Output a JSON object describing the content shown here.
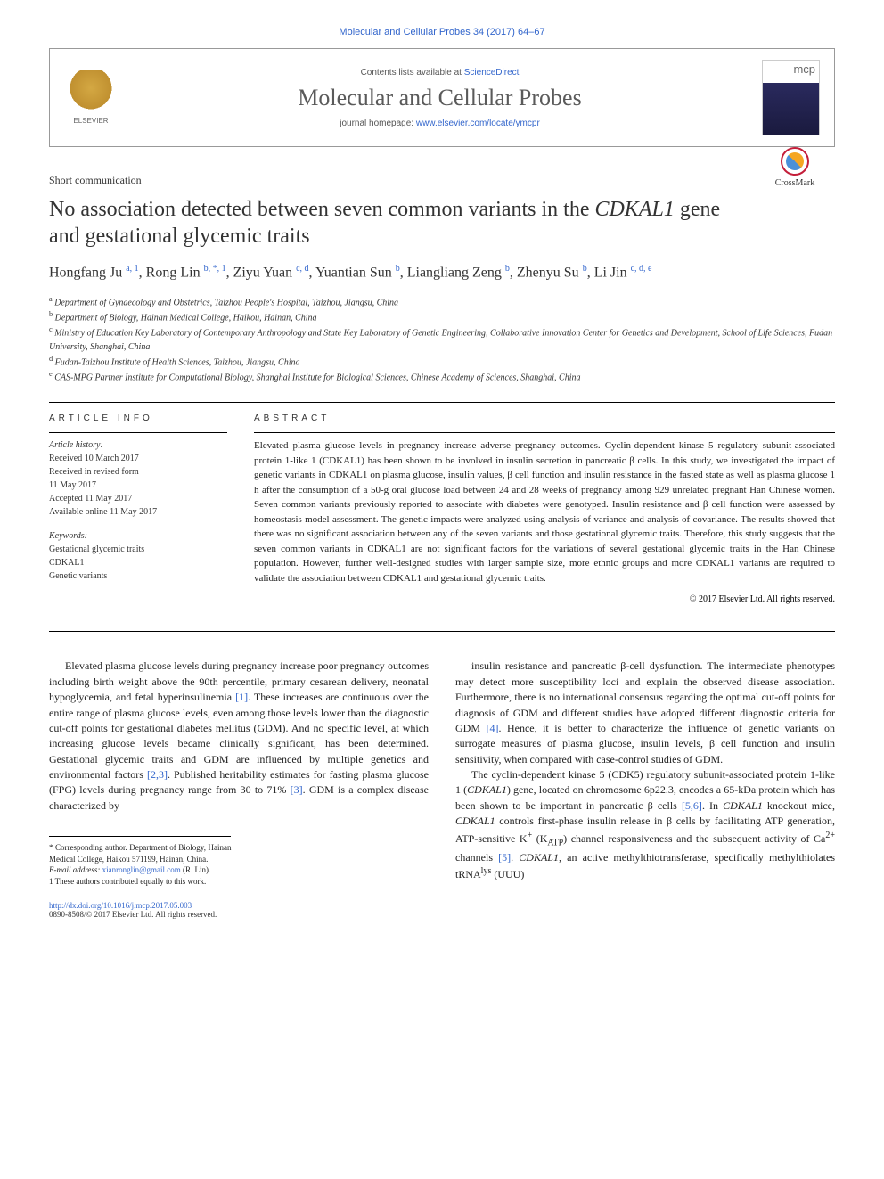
{
  "top_citation": "Molecular and Cellular Probes 34 (2017) 64–67",
  "header": {
    "contents_prefix": "Contents lists available at ",
    "contents_link": "ScienceDirect",
    "journal_name": "Molecular and Cellular Probes",
    "homepage_prefix": "journal homepage: ",
    "homepage_url": "www.elsevier.com/locate/ymcpr",
    "publisher": "ELSEVIER",
    "cover_abbrev": "mcp"
  },
  "crossmark_label": "CrossMark",
  "article_type": "Short communication",
  "title_part1": "No association detected between seven common variants in the ",
  "title_italic": "CDKAL1",
  "title_part2": " gene and gestational glycemic traits",
  "authors_html": "Hongfang Ju <sup>a, 1</sup>, Rong Lin <sup>b, *, 1</sup>, Ziyu Yuan <sup>c, d</sup>, Yuantian Sun <sup>b</sup>, Liangliang Zeng <sup>b</sup>, Zhenyu Su <sup>b</sup>, Li Jin <sup>c, d, e</sup>",
  "affiliations": [
    "a Department of Gynaecology and Obstetrics, Taizhou People's Hospital, Taizhou, Jiangsu, China",
    "b Department of Biology, Hainan Medical College, Haikou, Hainan, China",
    "c Ministry of Education Key Laboratory of Contemporary Anthropology and State Key Laboratory of Genetic Engineering, Collaborative Innovation Center for Genetics and Development, School of Life Sciences, Fudan University, Shanghai, China",
    "d Fudan-Taizhou Institute of Health Sciences, Taizhou, Jiangsu, China",
    "e CAS-MPG Partner Institute for Computational Biology, Shanghai Institute for Biological Sciences, Chinese Academy of Sciences, Shanghai, China"
  ],
  "article_info_label": "ARTICLE INFO",
  "abstract_label": "ABSTRACT",
  "history_heading": "Article history:",
  "history": [
    "Received 10 March 2017",
    "Received in revised form",
    "11 May 2017",
    "Accepted 11 May 2017",
    "Available online 11 May 2017"
  ],
  "keywords_heading": "Keywords:",
  "keywords": [
    "Gestational glycemic traits",
    "CDKAL1",
    "Genetic variants"
  ],
  "abstract": "Elevated plasma glucose levels in pregnancy increase adverse pregnancy outcomes. Cyclin-dependent kinase 5 regulatory subunit-associated protein 1-like 1 (CDKAL1) has been shown to be involved in insulin secretion in pancreatic β cells. In this study, we investigated the impact of genetic variants in CDKAL1 on plasma glucose, insulin values, β cell function and insulin resistance in the fasted state as well as plasma glucose 1 h after the consumption of a 50-g oral glucose load between 24 and 28 weeks of pregnancy among 929 unrelated pregnant Han Chinese women. Seven common variants previously reported to associate with diabetes were genotyped. Insulin resistance and β cell function were assessed by homeostasis model assessment. The genetic impacts were analyzed using analysis of variance and analysis of covariance. The results showed that there was no significant association between any of the seven variants and those gestational glycemic traits. Therefore, this study suggests that the seven common variants in CDKAL1 are not significant factors for the variations of several gestational glycemic traits in the Han Chinese population. However, further well-designed studies with larger sample size, more ethnic groups and more CDKAL1 variants are required to validate the association between CDKAL1 and gestational glycemic traits.",
  "copyright": "© 2017 Elsevier Ltd. All rights reserved.",
  "body_left": "Elevated plasma glucose levels during pregnancy increase poor pregnancy outcomes including birth weight above the 90th percentile, primary cesarean delivery, neonatal hypoglycemia, and fetal hyperinsulinemia [1]. These increases are continuous over the entire range of plasma glucose levels, even among those levels lower than the diagnostic cut-off points for gestational diabetes mellitus (GDM). And no specific level, at which increasing glucose levels became clinically significant, has been determined. Gestational glycemic traits and GDM are influenced by multiple genetics and environmental factors [2,3]. Published heritability estimates for fasting plasma glucose (FPG) levels during pregnancy range from 30 to 71% [3]. GDM is a complex disease characterized by",
  "body_right_p1": "insulin resistance and pancreatic β-cell dysfunction. The intermediate phenotypes may detect more susceptibility loci and explain the observed disease association. Furthermore, there is no international consensus regarding the optimal cut-off points for diagnosis of GDM and different studies have adopted different diagnostic criteria for GDM [4]. Hence, it is better to characterize the influence of genetic variants on surrogate measures of plasma glucose, insulin levels, β cell function and insulin sensitivity, when compared with case-control studies of GDM.",
  "body_right_p2": "The cyclin-dependent kinase 5 (CDK5) regulatory subunit-associated protein 1-like 1 (CDKAL1) gene, located on chromosome 6p22.3, encodes a 65-kDa protein which has been shown to be important in pancreatic β cells [5,6]. In CDKAL1 knockout mice, CDKAL1 controls first-phase insulin release in β cells by facilitating ATP generation, ATP-sensitive K+ (KATP) channel responsiveness and the subsequent activity of Ca2+ channels [5]. CDKAL1, an active methylthiotransferase, specifically methylthiolates tRNAlys (UUU)",
  "footnotes": {
    "corresponding": "* Corresponding author. Department of Biology, Hainan Medical College, Haikou 571199, Hainan, China.",
    "email_label": "E-mail address: ",
    "email": "xianronglin@gmail.com",
    "email_suffix": " (R. Lin).",
    "equal": "1 These authors contributed equally to this work."
  },
  "footer": {
    "doi": "http://dx.doi.org/10.1016/j.mcp.2017.05.003",
    "issn_copyright": "0890-8508/© 2017 Elsevier Ltd. All rights reserved."
  },
  "colors": {
    "link": "#3366cc",
    "text": "#222222",
    "heading": "#333333"
  }
}
